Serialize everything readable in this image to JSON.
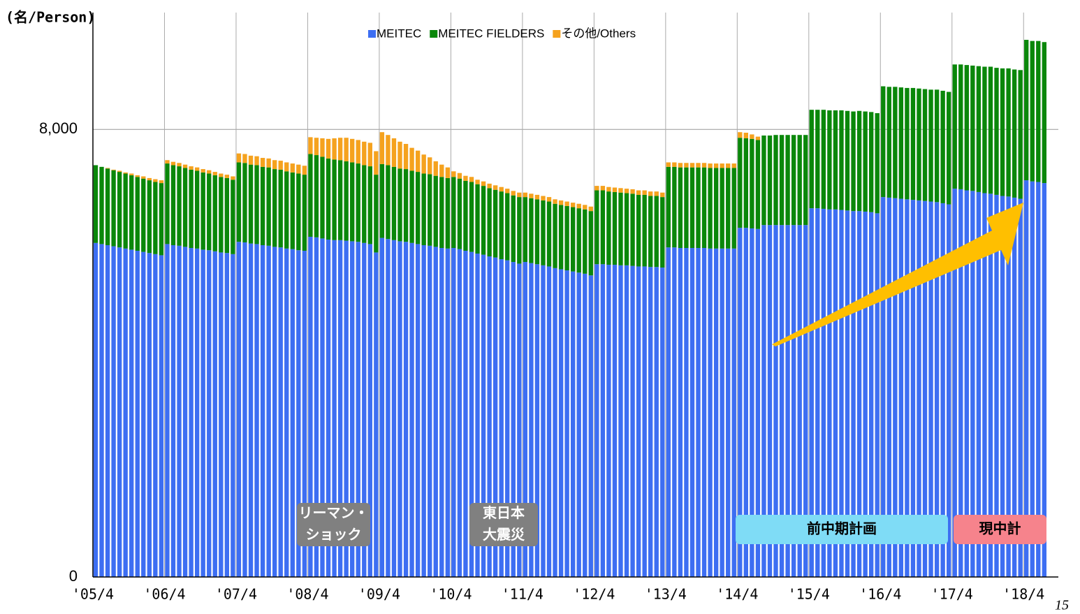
{
  "chart_data": {
    "type": "stacked_bar",
    "y_axis_label": "(名/Person)",
    "categories": [
      "'05/4",
      null,
      null,
      null,
      null,
      null,
      null,
      null,
      null,
      null,
      null,
      null,
      "'06/4",
      null,
      null,
      null,
      null,
      null,
      null,
      null,
      null,
      null,
      null,
      null,
      "'07/4",
      null,
      null,
      null,
      null,
      null,
      null,
      null,
      null,
      null,
      null,
      null,
      "'08/4",
      null,
      null,
      null,
      null,
      null,
      null,
      null,
      null,
      null,
      null,
      null,
      "'09/4",
      null,
      null,
      null,
      null,
      null,
      null,
      null,
      null,
      null,
      null,
      null,
      "'10/4",
      null,
      null,
      null,
      null,
      null,
      null,
      null,
      null,
      null,
      null,
      null,
      "'11/4",
      null,
      null,
      null,
      null,
      null,
      null,
      null,
      null,
      null,
      null,
      null,
      "'12/4",
      null,
      null,
      null,
      null,
      null,
      null,
      null,
      null,
      null,
      null,
      null,
      "'13/4",
      null,
      null,
      null,
      null,
      null,
      null,
      null,
      null,
      null,
      null,
      null,
      "'14/4",
      null,
      null,
      null,
      null,
      null,
      null,
      null,
      null,
      null,
      null,
      null,
      "'15/4",
      null,
      null,
      null,
      null,
      null,
      null,
      null,
      null,
      null,
      null,
      null,
      "'16/4",
      null,
      null,
      null,
      null,
      null,
      null,
      null,
      null,
      null,
      null,
      null,
      "'17/4",
      null,
      null,
      null,
      null,
      null,
      null,
      null,
      null,
      null,
      null,
      null,
      "'18/4",
      null,
      null,
      null
    ],
    "series": [
      {
        "name": "MEITEC",
        "color": "#3d6ef2",
        "values": [
          5970,
          5950,
          5930,
          5910,
          5890,
          5870,
          5850,
          5830,
          5810,
          5790,
          5770,
          5750,
          5950,
          5930,
          5920,
          5900,
          5880,
          5870,
          5850,
          5840,
          5820,
          5800,
          5790,
          5770,
          5990,
          5980,
          5960,
          5950,
          5930,
          5920,
          5900,
          5890,
          5870,
          5860,
          5840,
          5830,
          6080,
          6070,
          6050,
          6030,
          6020,
          6020,
          6010,
          6000,
          5990,
          5970,
          5950,
          5800,
          6060,
          6040,
          6020,
          6000,
          5990,
          5970,
          5950,
          5930,
          5920,
          5900,
          5880,
          5870,
          5880,
          5860,
          5830,
          5810,
          5780,
          5760,
          5730,
          5710,
          5680,
          5660,
          5630,
          5600,
          5630,
          5610,
          5590,
          5570,
          5550,
          5520,
          5500,
          5480,
          5460,
          5440,
          5420,
          5390,
          5590,
          5590,
          5580,
          5580,
          5570,
          5570,
          5560,
          5550,
          5550,
          5540,
          5540,
          5530,
          5890,
          5890,
          5880,
          5880,
          5880,
          5880,
          5880,
          5870,
          5870,
          5870,
          5870,
          5870,
          6240,
          6240,
          6230,
          6220,
          6290,
          6290,
          6290,
          6290,
          6290,
          6290,
          6290,
          6290,
          6590,
          6590,
          6580,
          6570,
          6570,
          6560,
          6550,
          6540,
          6540,
          6530,
          6520,
          6500,
          6790,
          6780,
          6770,
          6760,
          6750,
          6740,
          6730,
          6720,
          6710,
          6700,
          6680,
          6660,
          6940,
          6930,
          6910,
          6900,
          6880,
          6860,
          6850,
          6830,
          6810,
          6800,
          6780,
          6760,
          7090,
          7070,
          7060,
          7040
        ]
      },
      {
        "name": "MEITEC FIELDERS",
        "color": "#0a870a",
        "values": [
          1390,
          1380,
          1370,
          1360,
          1350,
          1340,
          1330,
          1320,
          1310,
          1300,
          1290,
          1290,
          1440,
          1430,
          1420,
          1410,
          1400,
          1390,
          1380,
          1370,
          1360,
          1350,
          1340,
          1330,
          1420,
          1420,
          1410,
          1410,
          1400,
          1400,
          1390,
          1390,
          1380,
          1370,
          1370,
          1360,
          1480,
          1470,
          1460,
          1450,
          1440,
          1430,
          1420,
          1410,
          1400,
          1390,
          1390,
          1390,
          1320,
          1320,
          1310,
          1300,
          1300,
          1290,
          1290,
          1280,
          1280,
          1270,
          1270,
          1260,
          1270,
          1260,
          1250,
          1250,
          1240,
          1230,
          1220,
          1210,
          1210,
          1200,
          1190,
          1190,
          1160,
          1160,
          1160,
          1160,
          1160,
          1150,
          1150,
          1150,
          1150,
          1150,
          1150,
          1150,
          1320,
          1320,
          1310,
          1300,
          1300,
          1290,
          1290,
          1280,
          1280,
          1270,
          1270,
          1260,
          1440,
          1440,
          1440,
          1440,
          1440,
          1440,
          1440,
          1440,
          1440,
          1440,
          1440,
          1440,
          1610,
          1600,
          1600,
          1590,
          1600,
          1600,
          1610,
          1610,
          1610,
          1610,
          1610,
          1610,
          1760,
          1760,
          1770,
          1770,
          1770,
          1780,
          1780,
          1780,
          1790,
          1790,
          1790,
          1790,
          1980,
          1980,
          1990,
          1990,
          1990,
          2000,
          2000,
          2000,
          2000,
          2010,
          2010,
          2010,
          2220,
          2230,
          2240,
          2240,
          2250,
          2260,
          2270,
          2270,
          2280,
          2290,
          2290,
          2300,
          2510,
          2510,
          2520,
          2520
        ]
      },
      {
        "name": "その他/Others",
        "color": "#f5a21e",
        "values": [
          0,
          0,
          10,
          10,
          20,
          20,
          30,
          30,
          40,
          40,
          50,
          50,
          60,
          60,
          60,
          60,
          60,
          60,
          60,
          60,
          60,
          60,
          60,
          60,
          160,
          160,
          160,
          160,
          160,
          160,
          160,
          160,
          160,
          160,
          160,
          160,
          300,
          310,
          330,
          350,
          380,
          400,
          420,
          420,
          420,
          420,
          420,
          420,
          570,
          540,
          510,
          480,
          450,
          410,
          380,
          340,
          300,
          260,
          220,
          190,
          100,
          100,
          90,
          90,
          80,
          80,
          80,
          80,
          80,
          80,
          80,
          80,
          80,
          80,
          80,
          80,
          80,
          80,
          80,
          80,
          80,
          80,
          80,
          80,
          80,
          80,
          80,
          80,
          80,
          80,
          80,
          80,
          80,
          80,
          80,
          80,
          80,
          80,
          80,
          80,
          80,
          80,
          80,
          80,
          80,
          80,
          80,
          80,
          100,
          100,
          80,
          60,
          0,
          0,
          0,
          0,
          0,
          0,
          0,
          0,
          0,
          0,
          0,
          0,
          0,
          0,
          0,
          0,
          0,
          0,
          0,
          0,
          0,
          0,
          0,
          0,
          0,
          0,
          0,
          0,
          0,
          0,
          0,
          0,
          0,
          0,
          0,
          0,
          0,
          0,
          0,
          0,
          0,
          0,
          0,
          0,
          0,
          0,
          0,
          0
        ]
      }
    ],
    "ylim": [
      0,
      10000
    ],
    "yticks": [
      0,
      {
        "value": 8000,
        "label": "8,000"
      }
    ],
    "grid": true,
    "legend": "top",
    "annotations": [
      {
        "lines": [
          "リーマン・",
          "ショック"
        ],
        "color": "#808080"
      },
      {
        "lines": [
          "東日本",
          "大震災"
        ],
        "color": "#808080"
      },
      {
        "lines": [
          "前中期計画"
        ],
        "color": "#7fdcf6"
      },
      {
        "lines": [
          "現中計"
        ],
        "color": "#f6838c"
      }
    ],
    "page_number": "15"
  }
}
